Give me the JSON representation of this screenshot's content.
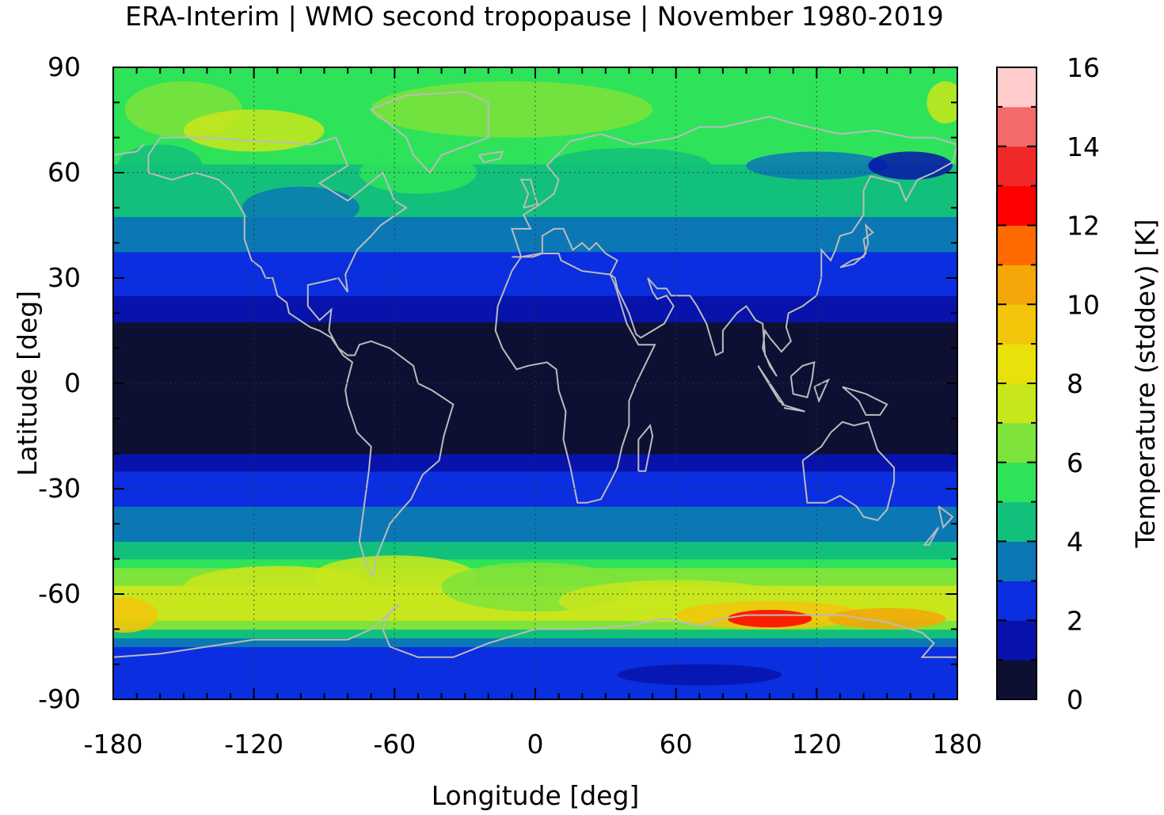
{
  "title": "ERA-Interim | WMO second tropopause | November 1980-2019",
  "x_axis": {
    "label": "Longitude [deg]",
    "range": [
      -180,
      180
    ],
    "ticks": [
      -180,
      -120,
      -60,
      0,
      60,
      120,
      180
    ],
    "tick_labels": [
      "-180",
      "-120",
      "-60",
      "0",
      "60",
      "120",
      "180"
    ]
  },
  "y_axis": {
    "label": "Latitude [deg]",
    "range": [
      -90,
      90
    ],
    "ticks": [
      90,
      60,
      30,
      0,
      -30,
      -60,
      -90
    ],
    "tick_labels": [
      "90",
      "60",
      "30",
      "0",
      "-30",
      "-60",
      "-90"
    ]
  },
  "colorbar": {
    "label": "Temperature (stddev) [K]",
    "range": [
      0,
      16
    ],
    "ticks": [
      0,
      2,
      4,
      6,
      8,
      10,
      12,
      14,
      16
    ],
    "tick_labels": [
      "0",
      "2",
      "4",
      "6",
      "8",
      "10",
      "12",
      "14",
      "16"
    ],
    "levels": [
      {
        "from": 0,
        "to": 1,
        "color": "#0d1033"
      },
      {
        "from": 1,
        "to": 2,
        "color": "#0713aa"
      },
      {
        "from": 2,
        "to": 3,
        "color": "#0a2ee0"
      },
      {
        "from": 3,
        "to": 4,
        "color": "#0b78b5"
      },
      {
        "from": 4,
        "to": 5,
        "color": "#12c07b"
      },
      {
        "from": 5,
        "to": 6,
        "color": "#2ee35a"
      },
      {
        "from": 6,
        "to": 7,
        "color": "#7ee33a"
      },
      {
        "from": 7,
        "to": 8,
        "color": "#c8e61c"
      },
      {
        "from": 8,
        "to": 9,
        "color": "#e8e10a"
      },
      {
        "from": 9,
        "to": 10,
        "color": "#f2c40a"
      },
      {
        "from": 10,
        "to": 11,
        "color": "#f5a608"
      },
      {
        "from": 11,
        "to": 12,
        "color": "#ff6a00"
      },
      {
        "from": 12,
        "to": 13,
        "color": "#ff0000"
      },
      {
        "from": 13,
        "to": 14,
        "color": "#f02828"
      },
      {
        "from": 14,
        "to": 15,
        "color": "#f26a6a"
      },
      {
        "from": 15,
        "to": 16,
        "color": "#ffcccc"
      }
    ]
  },
  "grid": true,
  "coastline_color": "#bbbbbb",
  "chart_data": {
    "type": "heatmap",
    "title": "ERA-Interim | WMO second tropopause | November 1980-2019",
    "xlabel": "Longitude [deg]",
    "ylabel": "Latitude [deg]",
    "xlim": [
      -180,
      180
    ],
    "ylim": [
      -90,
      90
    ],
    "colorbar_label": "Temperature (stddev) [K]",
    "zlim": [
      0,
      16
    ],
    "zonal_profile": {
      "lat": [
        -90,
        -85,
        -80,
        -75,
        -70,
        -65,
        -60,
        -55,
        -50,
        -45,
        -40,
        -35,
        -30,
        -25,
        -20,
        -15,
        -10,
        -5,
        0,
        5,
        10,
        15,
        20,
        25,
        30,
        35,
        40,
        45,
        50,
        55,
        60,
        65,
        70,
        75,
        80,
        85,
        90
      ],
      "stddev": [
        2.4,
        2.3,
        2.4,
        3.0,
        5.5,
        8.0,
        7.5,
        6.5,
        5.2,
        4.0,
        3.4,
        3.0,
        2.5,
        2.1,
        0.9,
        0.5,
        0.4,
        0.4,
        0.4,
        0.4,
        0.5,
        0.6,
        1.2,
        2.2,
        2.5,
        2.7,
        3.1,
        3.6,
        4.2,
        4.6,
        4.8,
        5.2,
        5.4,
        5.6,
        5.6,
        5.4,
        5.2
      ]
    }
  }
}
